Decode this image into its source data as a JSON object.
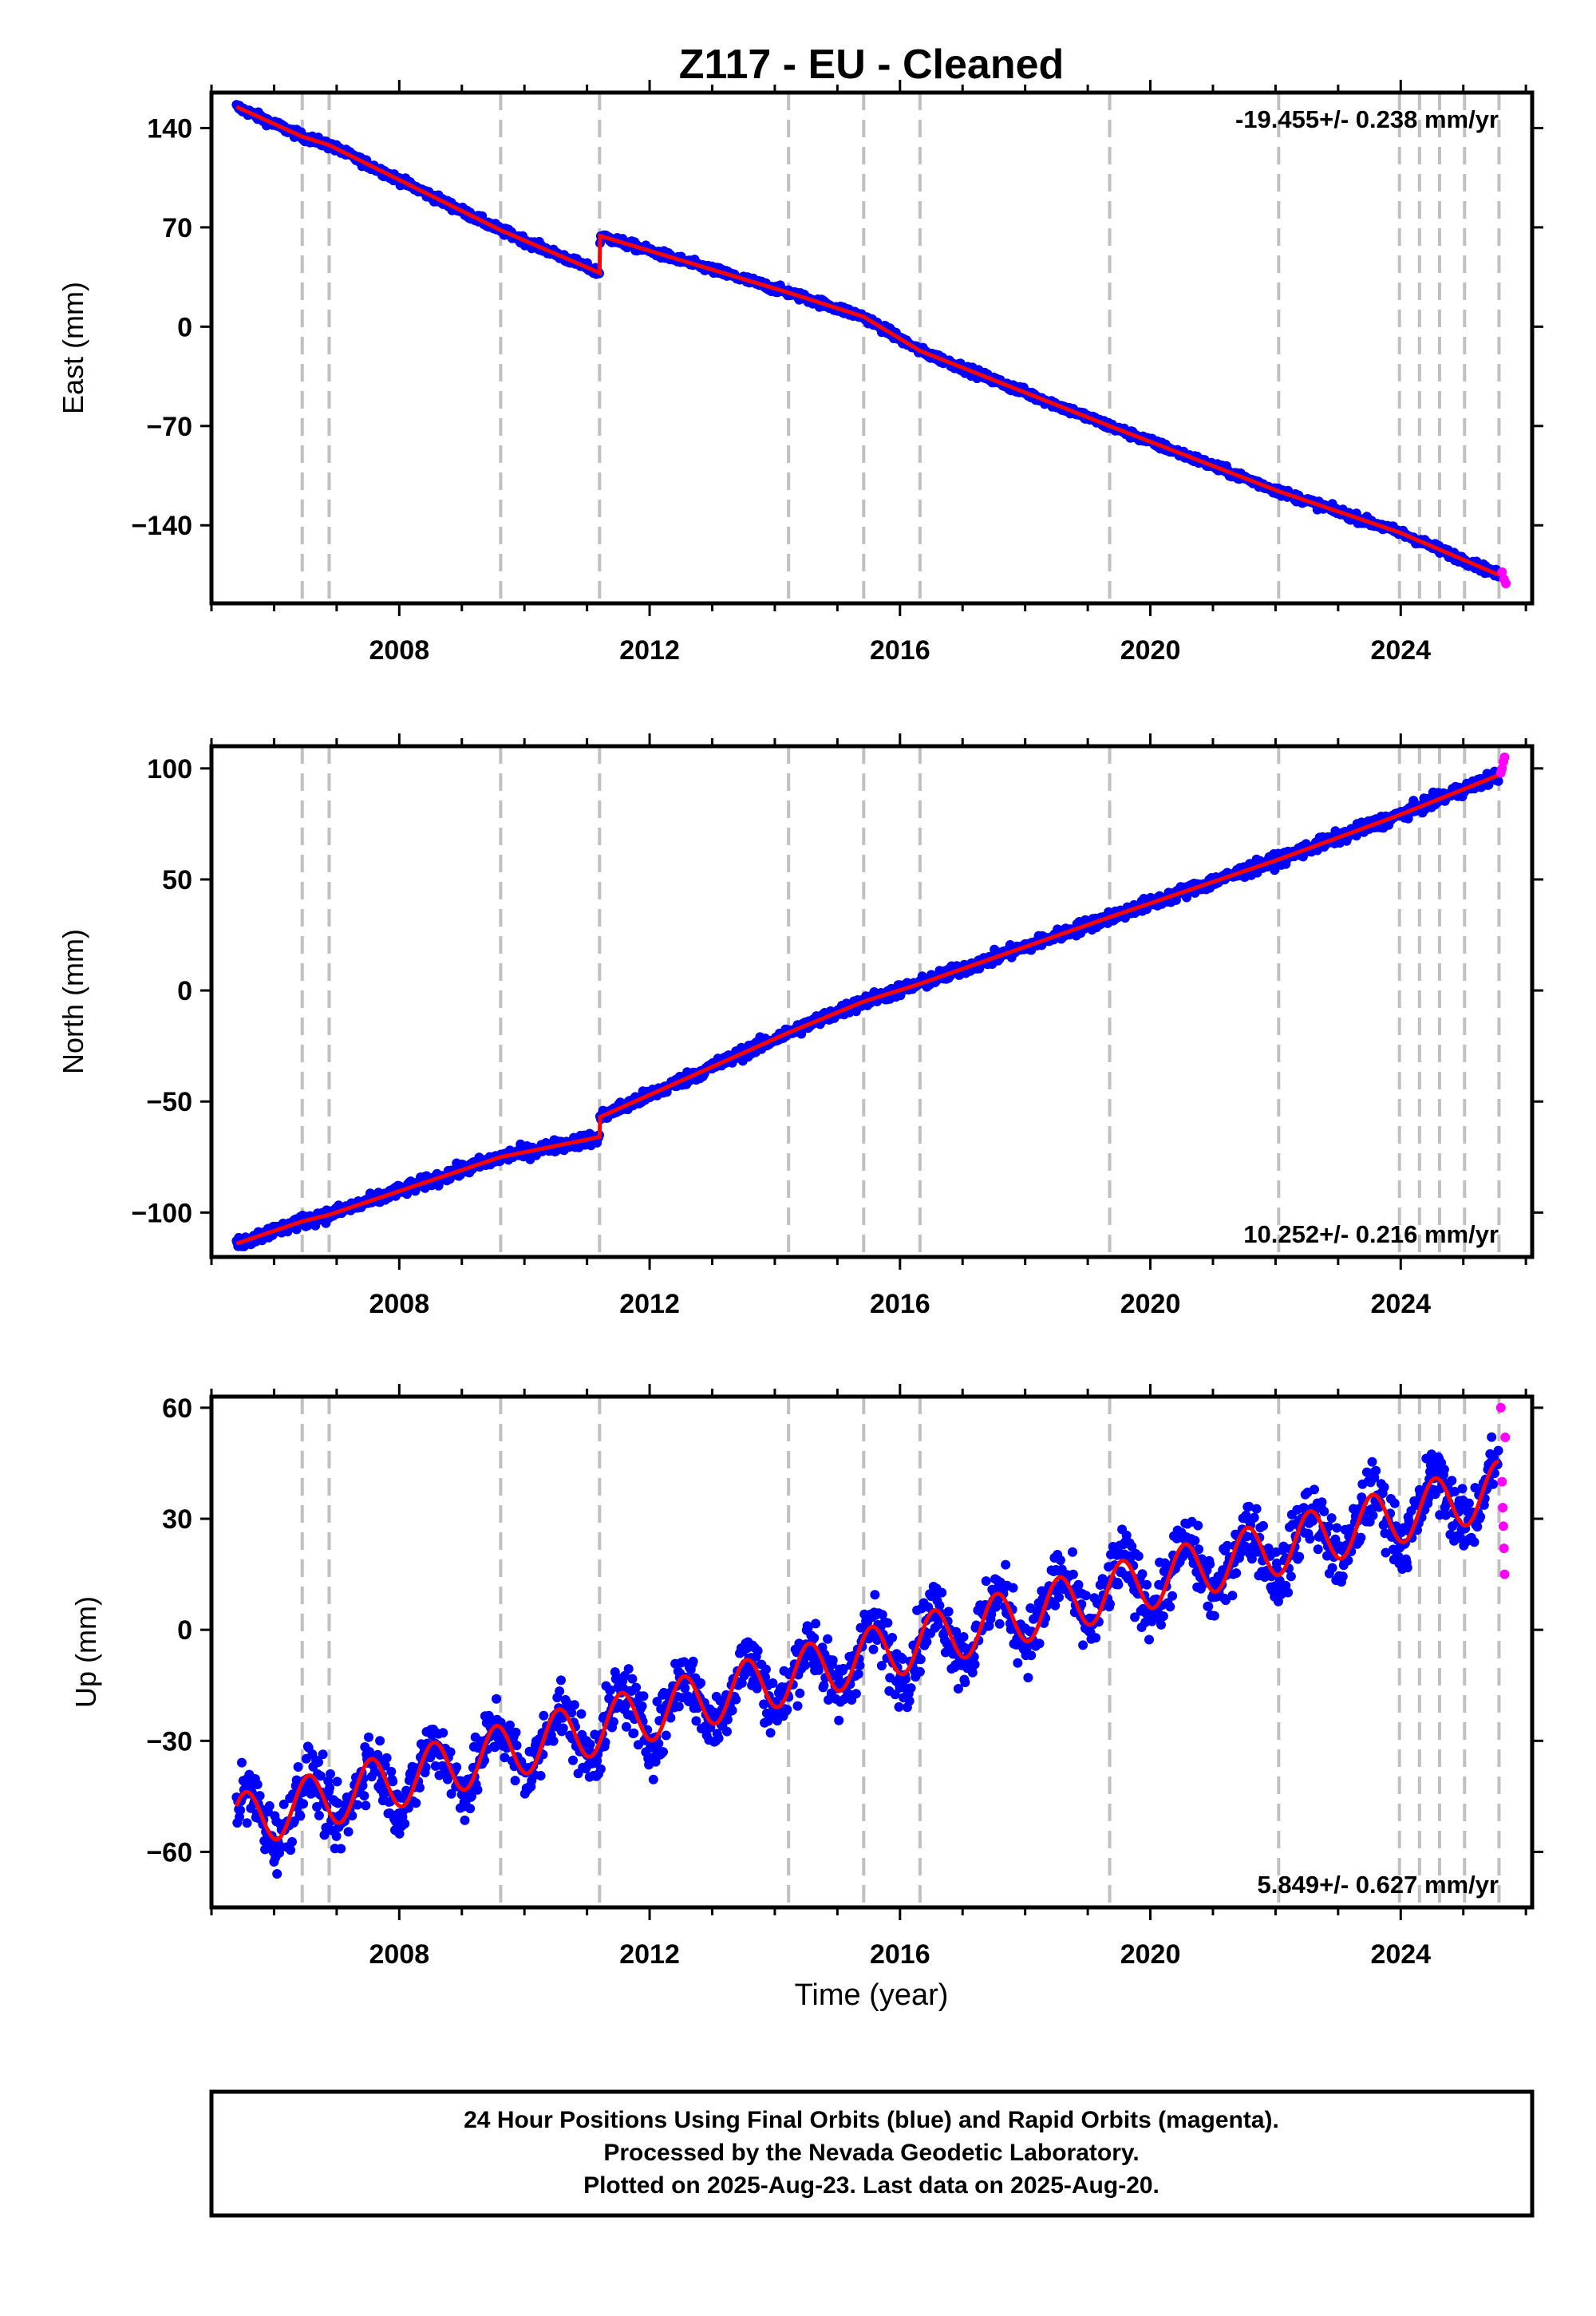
{
  "chart_data": {
    "type": "scatter",
    "title": "Z117  - EU - Cleaned",
    "xlabel": "Time (year)",
    "x_ticks": [
      "2008",
      "2012",
      "2016",
      "2020",
      "2024"
    ],
    "xlim": [
      2005.0,
      2026.1
    ],
    "offset_lines": [
      2006.45,
      2006.88,
      2009.62,
      2011.2,
      2014.22,
      2015.42,
      2016.32,
      2019.35,
      2022.05,
      2023.98,
      2024.3,
      2024.62,
      2025.02,
      2025.57
    ],
    "colors": {
      "final": "#0000ff",
      "rapid": "#ff00ff",
      "model": "#ff0000",
      "offset": "#c0c0c0"
    },
    "panels": [
      {
        "ylabel": "East (mm)",
        "ylim": [
          -195,
          165
        ],
        "yticks": [
          "140",
          "70",
          "0",
          "−70",
          "−140"
        ],
        "ytick_values": [
          140,
          70,
          0,
          -70,
          -140
        ],
        "rate": "-19.455+/- 0.238 mm/yr",
        "rate_position": "top-right",
        "series": [
          {
            "name": "model",
            "x": [
              2005.4,
              2006.45,
              2006.88,
              2009.62,
              2011.2,
              2011.21,
              2014.22,
              2015.42,
              2016.32,
              2019.35,
              2022.05,
              2023.98,
              2025.57
            ],
            "y": [
              155,
              134,
              128,
              68,
              38,
              64,
              24,
              7,
              -17,
              -70,
              -116,
              -145,
              -175
            ]
          },
          {
            "name": "rapid",
            "x": [
              2025.62,
              2025.65,
              2025.68
            ],
            "y": [
              -173,
              -178,
              -181
            ]
          }
        ]
      },
      {
        "ylabel": "North (mm)",
        "ylim": [
          -120,
          110
        ],
        "yticks": [
          "100",
          "50",
          "0",
          "−50",
          "−100"
        ],
        "ytick_values": [
          100,
          50,
          0,
          -50,
          -100
        ],
        "rate": "10.252+/- 0.216 mm/yr",
        "rate_position": "bottom-right",
        "series": [
          {
            "name": "model",
            "x": [
              2005.4,
              2006.45,
              2006.88,
              2009.62,
              2011.2,
              2011.21,
              2014.22,
              2015.42,
              2016.32,
              2019.35,
              2022.05,
              2023.98,
              2025.57
            ],
            "y": [
              -114,
              -104,
              -101,
              -75,
              -66,
              -57,
              -19,
              -5,
              3,
              33,
              59,
              79,
              97
            ]
          },
          {
            "name": "rapid",
            "x": [
              2025.6,
              2025.62,
              2025.64,
              2025.66
            ],
            "y": [
              98,
              100,
              103,
              105
            ]
          }
        ]
      },
      {
        "ylabel": "Up (mm)",
        "ylim": [
          -75,
          63
        ],
        "yticks": [
          "60",
          "30",
          "0",
          "−30",
          "−60"
        ],
        "ytick_values": [
          60,
          30,
          0,
          -30,
          -60
        ],
        "rate": "5.849+/- 0.627 mm/yr",
        "rate_position": "bottom-right",
        "series": [
          {
            "name": "model",
            "x": [
              2005.4,
              2025.57
            ],
            "y": [
              -52,
              38
            ],
            "annual_amplitude_mm": 7.5
          },
          {
            "name": "rapid",
            "x": [
              2025.6,
              2025.62,
              2025.63,
              2025.64,
              2025.65,
              2025.66,
              2025.67
            ],
            "y": [
              60,
              40,
              33,
              28,
              22,
              15,
              52
            ]
          }
        ]
      }
    ]
  },
  "footer": {
    "line1": "24 Hour Positions Using Final Orbits (blue) and Rapid Orbits (magenta).",
    "line2": "Processed by the Nevada Geodetic Laboratory.",
    "line3": "Plotted on 2025-Aug-23. Last data on 2025-Aug-20."
  }
}
